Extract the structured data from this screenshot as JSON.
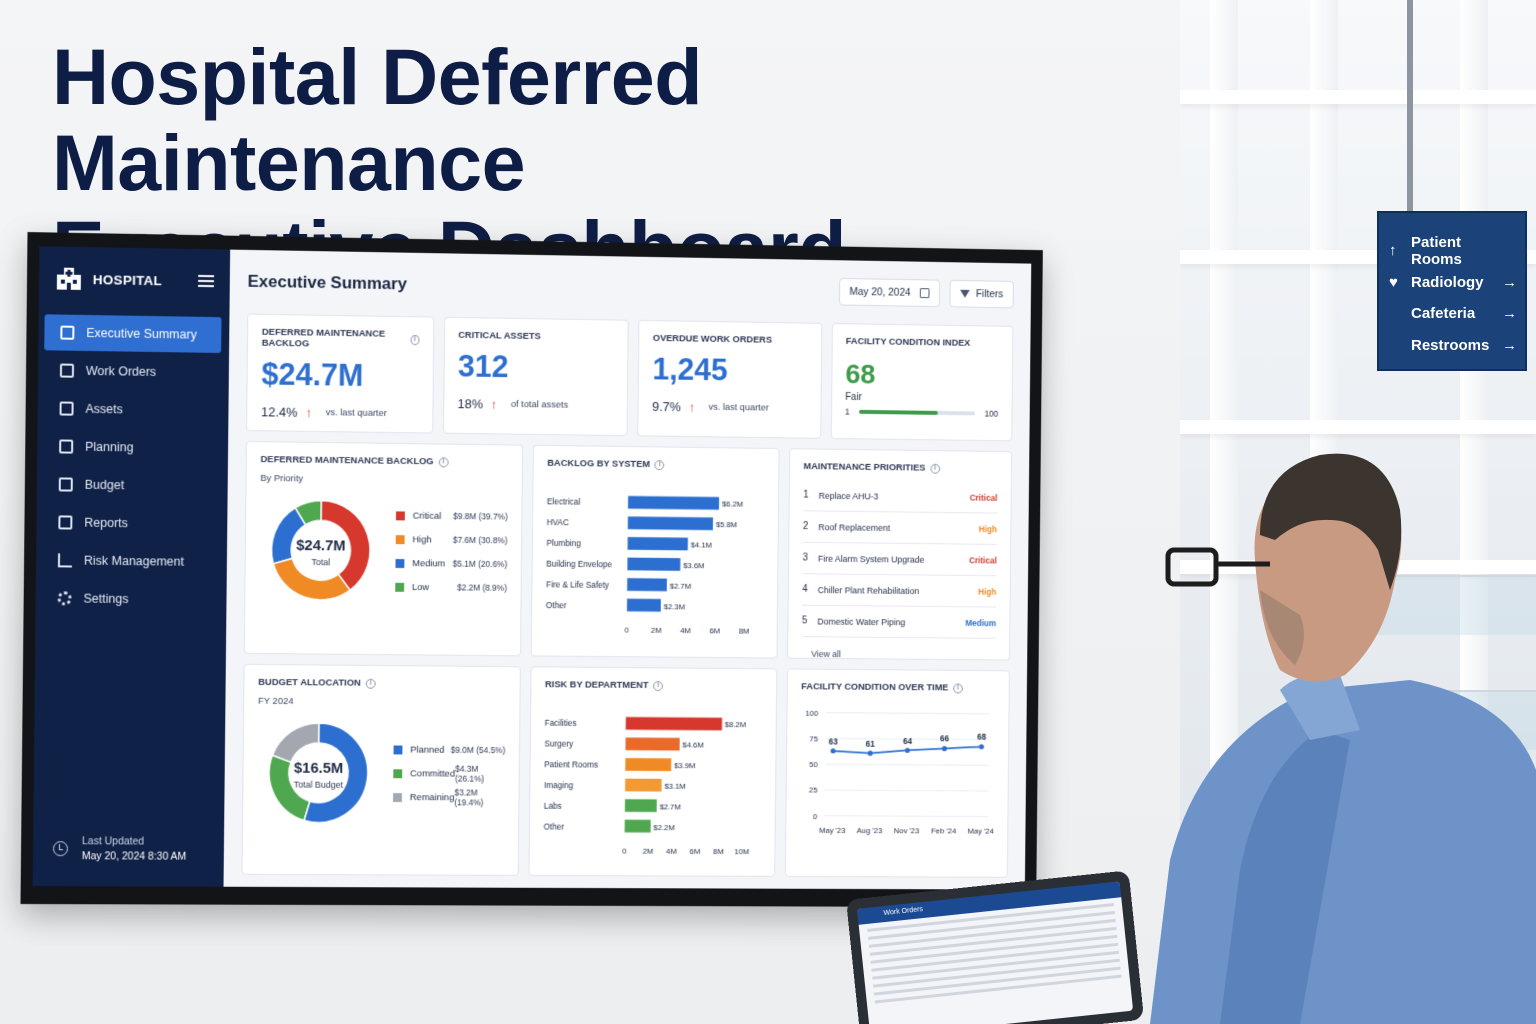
{
  "headline": {
    "line1": "Hospital Deferred Maintenance",
    "line2": "Executive Dashboard"
  },
  "wayfinding": {
    "items": [
      {
        "label": "Patient Rooms",
        "lead": "↑",
        "arrow": ""
      },
      {
        "label": "Radiology",
        "lead": "♥",
        "arrow": "→"
      },
      {
        "label": "Cafeteria",
        "lead": "",
        "arrow": "→"
      },
      {
        "label": "Restrooms",
        "lead": "",
        "arrow": "→"
      }
    ]
  },
  "sidebar": {
    "brand": "HOSPITAL",
    "items": [
      {
        "label": "Executive Summary",
        "icon": "summary-icon",
        "active": true
      },
      {
        "label": "Work Orders",
        "icon": "work-orders-icon",
        "active": false
      },
      {
        "label": "Assets",
        "icon": "assets-icon",
        "active": false
      },
      {
        "label": "Planning",
        "icon": "planning-icon",
        "active": false
      },
      {
        "label": "Budget",
        "icon": "budget-icon",
        "active": false
      },
      {
        "label": "Reports",
        "icon": "reports-icon",
        "active": false
      },
      {
        "label": "Risk Management",
        "icon": "risk-icon",
        "active": false
      },
      {
        "label": "Settings",
        "icon": "gear-icon",
        "active": false
      }
    ],
    "last_updated_label": "Last Updated",
    "last_updated_value": "May 20, 2024  8:30 AM"
  },
  "topbar": {
    "title": "Executive Summary",
    "date": "May 20, 2024",
    "filters": "Filters"
  },
  "kpis": {
    "backlog": {
      "label": "DEFERRED MAINTENANCE BACKLOG",
      "value": "$24.7M",
      "change": "12.4%",
      "note": "vs. last quarter"
    },
    "critical": {
      "label": "CRITICAL ASSETS",
      "value": "312",
      "change": "18%",
      "note": "of total assets"
    },
    "overdue": {
      "label": "OVERDUE WORK ORDERS",
      "value": "1,245",
      "change": "9.7%",
      "note": "vs. last quarter"
    },
    "fci": {
      "label": "FACILITY CONDITION INDEX",
      "value": "68",
      "rating": "Fair",
      "min": "1",
      "max": "100",
      "level": 68
    }
  },
  "colors": {
    "accent": "#2d6fd0",
    "critical": "#d6382d",
    "high": "#f08a24",
    "medium": "#2d6fd0",
    "low": "#4fa84f",
    "remaining": "#a3a8b0"
  },
  "backlog_card": {
    "title": "DEFERRED MAINTENANCE BACKLOG",
    "subtitle": "By Priority",
    "center_value": "$24.7M",
    "center_label": "Total",
    "segments": [
      {
        "name": "Critical",
        "value": 9.8,
        "display": "$9.8M (39.7%)",
        "pct": 39.7,
        "color": "#d6382d"
      },
      {
        "name": "High",
        "value": 7.6,
        "display": "$7.6M (30.8%)",
        "pct": 30.8,
        "color": "#f08a24"
      },
      {
        "name": "Medium",
        "value": 5.1,
        "display": "$5.1M (20.6%)",
        "pct": 20.6,
        "color": "#2d6fd0"
      },
      {
        "name": "Low",
        "value": 2.2,
        "display": "$2.2M (8.9%)",
        "pct": 8.9,
        "color": "#4fa84f"
      }
    ]
  },
  "system_card": {
    "title": "BACKLOG BY SYSTEM",
    "categories": [
      "Electrical",
      "HVAC",
      "Plumbing",
      "Building Envelope",
      "Fire & Life Safety",
      "Other"
    ],
    "values": [
      6.2,
      5.8,
      4.1,
      3.6,
      2.7,
      2.3
    ],
    "labels": [
      "$6.2M",
      "$5.8M",
      "$4.1M",
      "$3.6M",
      "$2.7M",
      "$2.3M"
    ],
    "ticks": [
      "0",
      "2M",
      "4M",
      "6M",
      "8M"
    ],
    "xlim": [
      0,
      8
    ],
    "color": "#2d6fd0"
  },
  "priorities_card": {
    "title": "MAINTENANCE PRIORITIES",
    "items": [
      {
        "num": "1",
        "name": "Replace AHU-3",
        "level": "Critical",
        "color": "#d6382d"
      },
      {
        "num": "2",
        "name": "Roof Replacement",
        "level": "High",
        "color": "#f08a24"
      },
      {
        "num": "3",
        "name": "Fire Alarm System Upgrade",
        "level": "Critical",
        "color": "#d6382d"
      },
      {
        "num": "4",
        "name": "Chiller Plant Rehabilitation",
        "level": "High",
        "color": "#f08a24"
      },
      {
        "num": "5",
        "name": "Domestic Water Piping",
        "level": "Medium",
        "color": "#2d6fd0"
      }
    ],
    "view_all": "View all"
  },
  "budget_card": {
    "title": "BUDGET ALLOCATION",
    "subtitle": "FY 2024",
    "center_value": "$16.5M",
    "center_label": "Total Budget",
    "segments": [
      {
        "name": "Planned",
        "value": 9.0,
        "display": "$9.0M (54.5%)",
        "pct": 54.5,
        "color": "#2d6fd0"
      },
      {
        "name": "Committed",
        "value": 4.3,
        "display": "$4.3M (26.1%)",
        "pct": 26.1,
        "color": "#4fa84f"
      },
      {
        "name": "Remaining",
        "value": 3.2,
        "display": "$3.2M (19.4%)",
        "pct": 19.4,
        "color": "#a3a8b0"
      }
    ]
  },
  "risk_card": {
    "title": "RISK BY DEPARTMENT",
    "categories": [
      "Facilities",
      "Surgery",
      "Patient Rooms",
      "Imaging",
      "Labs",
      "Other"
    ],
    "values": [
      8.2,
      4.6,
      3.9,
      3.1,
      2.7,
      2.2
    ],
    "labels": [
      "$8.2M",
      "$4.6M",
      "$3.9M",
      "$3.1M",
      "$2.7M",
      "$2.2M"
    ],
    "colors": [
      "#d6382d",
      "#ea6a2a",
      "#f08a24",
      "#f39a34",
      "#4fa84f",
      "#4fa84f"
    ],
    "ticks": [
      "0",
      "2M",
      "4M",
      "6M",
      "8M",
      "10M"
    ],
    "xlim": [
      0,
      10
    ]
  },
  "chart_data": {
    "type": "line",
    "title": "FACILITY CONDITION OVER TIME",
    "x": [
      "May '23",
      "Aug '23",
      "Nov '23",
      "Feb '24",
      "May '24"
    ],
    "values": [
      63,
      61,
      64,
      66,
      68
    ],
    "ylim": [
      0,
      100
    ],
    "yticks": [
      "100",
      "75",
      "50",
      "25",
      "0"
    ],
    "color": "#2d6fd0",
    "grid": true
  },
  "tablet": {
    "title": "Work Orders"
  }
}
